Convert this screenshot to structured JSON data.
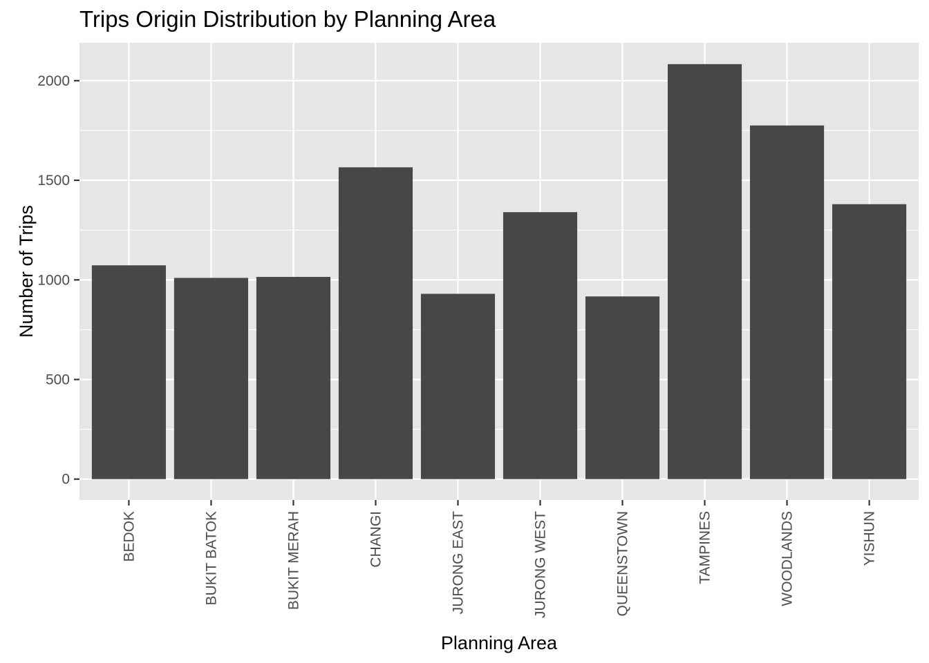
{
  "chart_data": {
    "type": "bar",
    "title": "Trips Origin Distribution by Planning Area",
    "xlabel": "Planning Area",
    "ylabel": "Number of Trips",
    "categories": [
      "BEDOK",
      "BUKIT BATOK",
      "BUKIT MERAH",
      "CHANGI",
      "JURONG EAST",
      "JURONG WEST",
      "QUEENSTOWN",
      "TAMPINES",
      "WOODLANDS",
      "YISHUN"
    ],
    "values": [
      1073,
      1010,
      1015,
      1565,
      930,
      1340,
      917,
      2083,
      1775,
      1380
    ],
    "yticks": [
      0,
      500,
      1000,
      1500,
      2000
    ],
    "ylim": [
      -105,
      2190
    ],
    "grid": true,
    "legend": "none",
    "colors": {
      "bar": "#474747",
      "panel": "#e6e6e6",
      "grid": "#ffffff"
    }
  }
}
